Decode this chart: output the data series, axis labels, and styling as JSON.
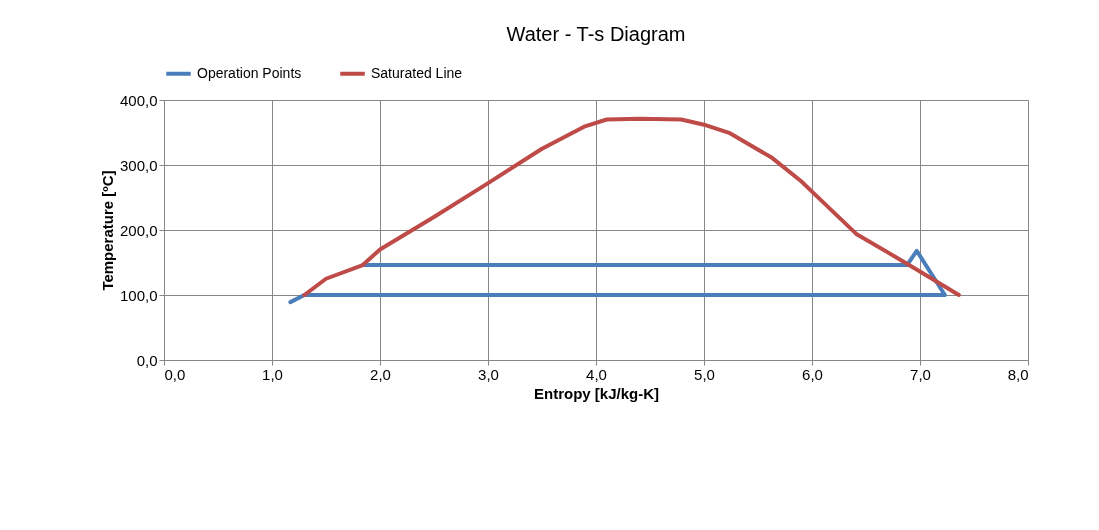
{
  "chart_data": {
    "type": "line",
    "title": "Water - T-s Diagram",
    "xlabel": "Entropy [kJ/kg-K]",
    "ylabel": "Temperature [ºC]",
    "xlim": [
      0,
      8
    ],
    "ylim": [
      0,
      400
    ],
    "xticks": [
      {
        "value": 0,
        "label": "0,0"
      },
      {
        "value": 1,
        "label": "1,0"
      },
      {
        "value": 2,
        "label": "2,0"
      },
      {
        "value": 3,
        "label": "3,0"
      },
      {
        "value": 4,
        "label": "4,0"
      },
      {
        "value": 5,
        "label": "5,0"
      },
      {
        "value": 6,
        "label": "6,0"
      },
      {
        "value": 7,
        "label": "7,0"
      },
      {
        "value": 8,
        "label": "8,0"
      }
    ],
    "yticks": [
      {
        "value": 0,
        "label": "0,0"
      },
      {
        "value": 100,
        "label": "100,0"
      },
      {
        "value": 200,
        "label": "200,0"
      },
      {
        "value": 300,
        "label": "300,0"
      },
      {
        "value": 400,
        "label": "400,0"
      }
    ],
    "grid": true,
    "legend": "top",
    "marker": "none",
    "line_style": "solid",
    "series": [
      {
        "name": "Operation Points",
        "color": "#4a7ebb",
        "x": [
          1.84,
          6.88,
          6.97,
          7.23,
          1.3,
          1.17
        ],
        "values": [
          146,
          146,
          168,
          100,
          100,
          89
        ]
      },
      {
        "name": "Saturated Line",
        "color": "#be4b48",
        "x": [
          1.3,
          1.5,
          1.84,
          2.0,
          2.5,
          2.99,
          3.5,
          3.89,
          4.1,
          4.4,
          4.79,
          5.0,
          5.24,
          5.63,
          5.9,
          6.0,
          6.41,
          6.77,
          6.93,
          7.36
        ],
        "values": [
          100,
          125,
          146,
          170,
          220,
          271,
          325,
          359,
          370,
          371,
          370,
          362,
          349,
          311,
          275,
          259,
          194,
          159,
          143,
          100
        ]
      }
    ]
  }
}
